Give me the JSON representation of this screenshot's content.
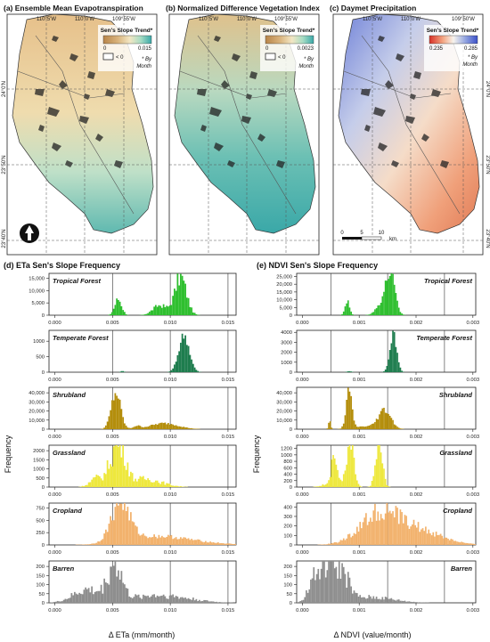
{
  "maps": [
    {
      "title": "(a) Ensemble Mean Evapotranspiration",
      "legend_title": "Sen's Slope Trend*",
      "legend_min": "0",
      "legend_max": "0.015",
      "neg_label": "< 0",
      "note_line1": "* By",
      "note_line2": "Month",
      "colors": [
        "#b8854a",
        "#d9b37c",
        "#f3e7c4",
        "#a6dcc4",
        "#3aa8a8"
      ],
      "show_neg_box": true,
      "top_ticks": [
        "110°5'W",
        "110°0'W",
        "109°55'W"
      ],
      "left_ticks": [
        "24°0'N",
        "23°50'N",
        "23°40'N"
      ],
      "show_north_arrow": true
    },
    {
      "title": "(b) Normalized Difference Vegetation Index",
      "legend_title": "Sen's Slope Trend*",
      "legend_min": "0",
      "legend_max": "0.0023",
      "neg_label": "< 0",
      "note_line1": "* By",
      "note_line2": "Month",
      "colors": [
        "#b8854a",
        "#d9b37c",
        "#f3e7c4",
        "#a6dcc4",
        "#3aa8a8"
      ],
      "show_neg_box": true,
      "top_ticks": [
        "110°5'W",
        "110°0'W",
        "109°55'W"
      ]
    },
    {
      "title": "(c) Daymet Precipitation",
      "legend_title": "Sen's Slope Trend*",
      "legend_min": "0.235",
      "legend_max": "0.285",
      "neg_label": "",
      "note_line1": "* By",
      "note_line2": "Month",
      "colors": [
        "#d73027",
        "#f4a582",
        "#f7f4ee",
        "#92a4e0",
        "#3b50c8"
      ],
      "show_neg_box": false,
      "top_ticks": [
        "110°5'W",
        "110°0'W",
        "109°50'W"
      ],
      "right_ticks": [
        "24°0'N",
        "23°50'N",
        "23°40'N"
      ],
      "scalebar": [
        "0",
        "5",
        "10",
        "km"
      ]
    }
  ],
  "chart_data": [
    {
      "type": "histogram",
      "title": "(d) ETa Sen's Slope Frequency",
      "xlabel": "Δ ETa (mm/month)",
      "ylabel": "Frequency",
      "xlim": [
        -0.0005,
        0.0157
      ],
      "xticks": [
        "0.000",
        "0.005",
        "0.010",
        "0.015"
      ],
      "xtick_values": [
        0.0,
        0.005,
        0.01,
        0.015
      ],
      "refs": [
        0.005,
        0.01,
        0.015
      ],
      "panels": [
        {
          "name": "Tropical Forest",
          "color": "#2fbf2f",
          "ylim": [
            0,
            17000
          ],
          "yticks": [
            0,
            5000,
            10000,
            15000
          ],
          "ytick_labels": [
            "0",
            "5,000",
            "10,000",
            "15,000"
          ],
          "peaks": [
            {
              "c": 0.0055,
              "w": 0.0003,
              "h": 6500
            },
            {
              "c": 0.0091,
              "w": 0.0006,
              "h": 4000
            },
            {
              "c": 0.0109,
              "w": 0.0005,
              "h": 15500
            }
          ],
          "noise": 0.25
        },
        {
          "name": "Temperate Forest",
          "color": "#1e7d4e",
          "ylim": [
            0,
            1350
          ],
          "yticks": [
            0,
            500,
            1000
          ],
          "ytick_labels": [
            "0",
            "500",
            "1000"
          ],
          "peaks": [
            {
              "c": 0.00585,
              "w": 0.00015,
              "h": 40
            },
            {
              "c": 0.0112,
              "w": 0.00045,
              "h": 1200
            }
          ],
          "noise": 0.15
        },
        {
          "name": "Shrubland",
          "color": "#b48e0c",
          "ylim": [
            0,
            46000
          ],
          "yticks": [
            0,
            10000,
            20000,
            30000,
            40000
          ],
          "ytick_labels": [
            "0",
            "10,000",
            "20,000",
            "30,000",
            "40,000"
          ],
          "peaks": [
            {
              "c": 0.0053,
              "w": 0.0004,
              "h": 40000
            },
            {
              "c": 0.0071,
              "w": 0.0003,
              "h": 3000
            },
            {
              "c": 0.0095,
              "w": 0.0012,
              "h": 6500
            }
          ],
          "noise": 0.2
        },
        {
          "name": "Grassland",
          "color": "#eee83e",
          "ylim": [
            0,
            2300
          ],
          "yticks": [
            0,
            500,
            1000,
            1500,
            2000
          ],
          "ytick_labels": [
            "0",
            "500",
            "1000",
            "1500",
            "2000"
          ],
          "peaks": [
            {
              "c": 0.0037,
              "w": 0.0006,
              "h": 500
            },
            {
              "c": 0.0049,
              "w": 0.0004,
              "h": 1000
            },
            {
              "c": 0.0057,
              "w": 0.0005,
              "h": 2100
            },
            {
              "c": 0.0078,
              "w": 0.0014,
              "h": 450
            }
          ],
          "noise": 0.4
        },
        {
          "name": "Cropland",
          "color": "#f2b26d",
          "ylim": [
            0,
            850
          ],
          "yticks": [
            0,
            250,
            500,
            750
          ],
          "ytick_labels": [
            "0",
            "250",
            "500",
            "750"
          ],
          "peaks": [
            {
              "c": 0.0057,
              "w": 0.0008,
              "h": 780
            },
            {
              "c": 0.0085,
              "w": 0.0025,
              "h": 160
            },
            {
              "c": 0.012,
              "w": 0.0025,
              "h": 45
            }
          ],
          "noise": 0.25
        },
        {
          "name": "Barren",
          "color": "#8e8e8e",
          "ylim": [
            0,
            230
          ],
          "yticks": [
            0,
            50,
            100,
            150,
            200
          ],
          "ytick_labels": [
            "0",
            "50",
            "100",
            "150",
            "200"
          ],
          "peaks": [
            {
              "c": 0.0028,
              "w": 0.0012,
              "h": 70
            },
            {
              "c": 0.0052,
              "w": 0.0006,
              "h": 200
            },
            {
              "c": 0.0081,
              "w": 0.0018,
              "h": 35
            },
            {
              "c": 0.011,
              "w": 0.0018,
              "h": 20
            }
          ],
          "noise": 0.45
        }
      ]
    },
    {
      "type": "histogram",
      "title": "(e) NDVI Sen's Slope Frequency",
      "xlabel": "Δ NDVI (value/month)",
      "ylabel": "Frequency",
      "xlim": [
        -0.0001,
        0.00305
      ],
      "xticks": [
        "0.000",
        "0.001",
        "0.002",
        "0.003"
      ],
      "xtick_values": [
        0.0,
        0.001,
        0.002,
        0.003
      ],
      "refs": [
        0.0005,
        0.0015,
        0.0025
      ],
      "panels": [
        {
          "name": "Tropical Forest",
          "color": "#2fbf2f",
          "ylim": [
            0,
            27000
          ],
          "yticks": [
            0,
            5000,
            10000,
            15000,
            20000,
            25000
          ],
          "ytick_labels": [
            "0",
            "5,000",
            "10,000",
            "15,000",
            "20,000",
            "25,000"
          ],
          "peaks": [
            {
              "c": 0.00079,
              "w": 4e-05,
              "h": 9000
            },
            {
              "c": 0.00155,
              "w": 8e-05,
              "h": 25000
            },
            {
              "c": 0.0014,
              "w": 0.0001,
              "h": 7000
            }
          ],
          "noise": 0.2
        },
        {
          "name": "Temperate Forest",
          "color": "#1e7d4e",
          "ylim": [
            0,
            4200
          ],
          "yticks": [
            0,
            1000,
            2000,
            3000,
            4000
          ],
          "ytick_labels": [
            "0",
            "1000",
            "2000",
            "3000",
            "4000"
          ],
          "peaks": [
            {
              "c": 0.00083,
              "w": 4e-05,
              "h": 100
            },
            {
              "c": 0.0016,
              "w": 6e-05,
              "h": 3800
            }
          ],
          "noise": 0.15
        },
        {
          "name": "Shrubland",
          "color": "#b48e0c",
          "ylim": [
            0,
            46000
          ],
          "yticks": [
            0,
            10000,
            20000,
            30000,
            40000
          ],
          "ytick_labels": [
            "0",
            "10,000",
            "20,000",
            "30,000",
            "40,000"
          ],
          "peaks": [
            {
              "c": 0.00082,
              "w": 5e-05,
              "h": 40000
            },
            {
              "c": 0.00048,
              "w": 2e-05,
              "h": 9000
            },
            {
              "c": 0.00145,
              "w": 0.00011,
              "h": 21000
            },
            {
              "c": 0.0011,
              "w": 0.0002,
              "h": 3000
            }
          ],
          "noise": 0.2
        },
        {
          "name": "Grassland",
          "color": "#eee83e",
          "ylim": [
            0,
            1300
          ],
          "yticks": [
            0,
            200,
            400,
            600,
            800,
            1000,
            1200
          ],
          "ytick_labels": [
            "0",
            "200",
            "400",
            "600",
            "800",
            "1000",
            "1200"
          ],
          "peaks": [
            {
              "c": 0.00055,
              "w": 4e-05,
              "h": 820
            },
            {
              "c": 0.00085,
              "w": 6e-05,
              "h": 1150
            },
            {
              "c": 0.00135,
              "w": 6e-05,
              "h": 1250
            },
            {
              "c": 0.0006,
              "w": 0.00015,
              "h": 250
            }
          ],
          "noise": 0.35
        },
        {
          "name": "Cropland",
          "color": "#f2b26d",
          "ylim": [
            0,
            440
          ],
          "yticks": [
            0,
            100,
            200,
            300,
            400
          ],
          "ytick_labels": [
            "0",
            "100",
            "200",
            "300",
            "400"
          ],
          "peaks": [
            {
              "c": 0.00138,
              "w": 0.00035,
              "h": 340
            },
            {
              "c": 0.0021,
              "w": 0.0004,
              "h": 130
            }
          ],
          "noise": 0.3
        },
        {
          "name": "Barren",
          "color": "#8e8e8e",
          "ylim": [
            0,
            230
          ],
          "yticks": [
            0,
            50,
            100,
            150,
            200
          ],
          "ytick_labels": [
            "0",
            "50",
            "100",
            "150",
            "200"
          ],
          "peaks": [
            {
              "c": 0.0002,
              "w": 0.0001,
              "h": 120
            },
            {
              "c": 0.00045,
              "w": 0.00012,
              "h": 200
            },
            {
              "c": 0.0007,
              "w": 0.00012,
              "h": 150
            },
            {
              "c": 0.0012,
              "w": 0.0004,
              "h": 30
            }
          ],
          "noise": 0.45
        }
      ]
    }
  ]
}
